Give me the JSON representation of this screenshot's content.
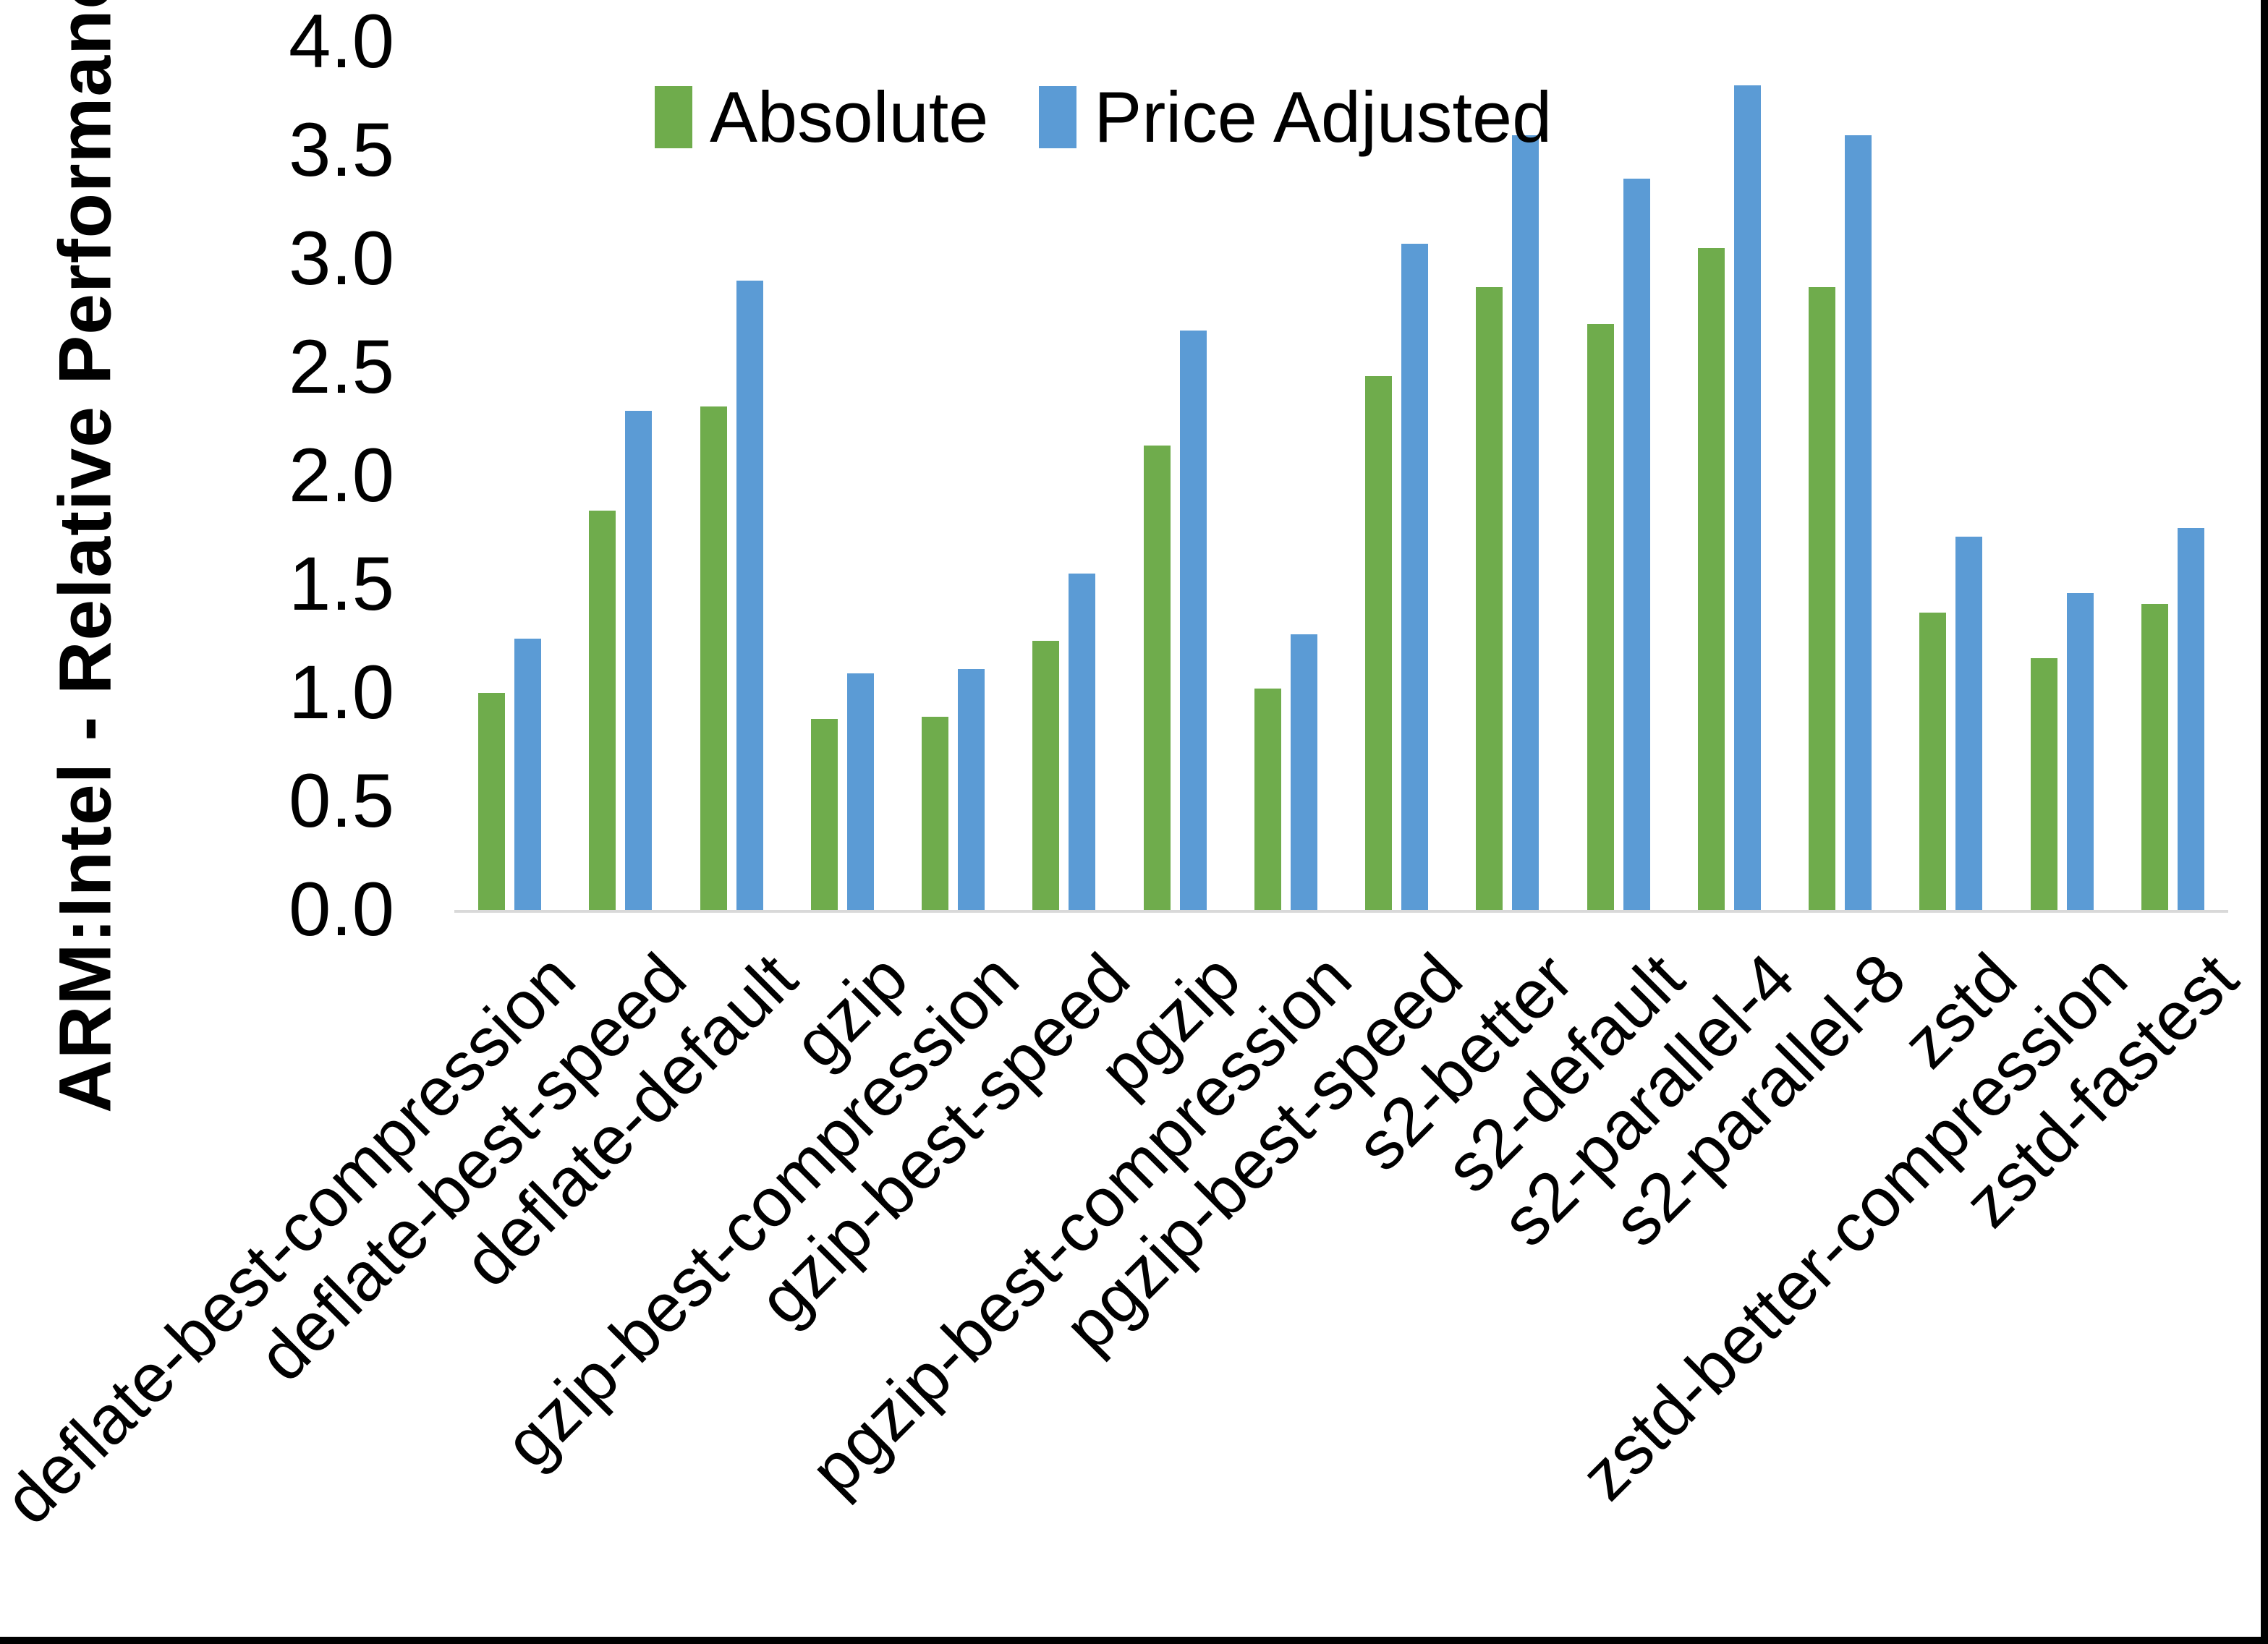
{
  "chart_data": {
    "type": "bar",
    "title": "",
    "xlabel": "",
    "ylabel": "ARM:Intel - Relative Performance",
    "ylim": [
      0,
      4.0
    ],
    "ytick_step": 0.5,
    "yticks": [
      "0.0",
      "0.5",
      "1.0",
      "1.5",
      "2.0",
      "2.5",
      "3.0",
      "3.5",
      "4.0"
    ],
    "grid": false,
    "legend_position": "top-center",
    "axis_line_color": "#d9d9d9",
    "categories": [
      "deflate-best-compression",
      "deflate-best-speed",
      "deflate-default",
      "gzip",
      "gzip-best-compression",
      "gzip-best-speed",
      "pgzip",
      "pgzip-best-compression",
      "pgzip-best-speed",
      "s2-better",
      "s2-default",
      "s2-parallel-4",
      "s2-parallel-8",
      "zstd",
      "zstd-better-compression",
      "zstd-fastest"
    ],
    "series": [
      {
        "name": "Absolute",
        "color": "#6fac4c",
        "values": [
          1.0,
          1.84,
          2.32,
          0.88,
          0.89,
          1.24,
          2.14,
          1.02,
          2.46,
          2.87,
          2.7,
          3.05,
          2.87,
          1.37,
          1.16,
          1.41
        ]
      },
      {
        "name": "Price Adjusted",
        "color": "#5b9bd5",
        "values": [
          1.25,
          2.3,
          2.9,
          1.09,
          1.11,
          1.55,
          2.67,
          1.27,
          3.07,
          3.57,
          3.37,
          3.8,
          3.57,
          1.72,
          1.46,
          1.76
        ]
      }
    ]
  }
}
